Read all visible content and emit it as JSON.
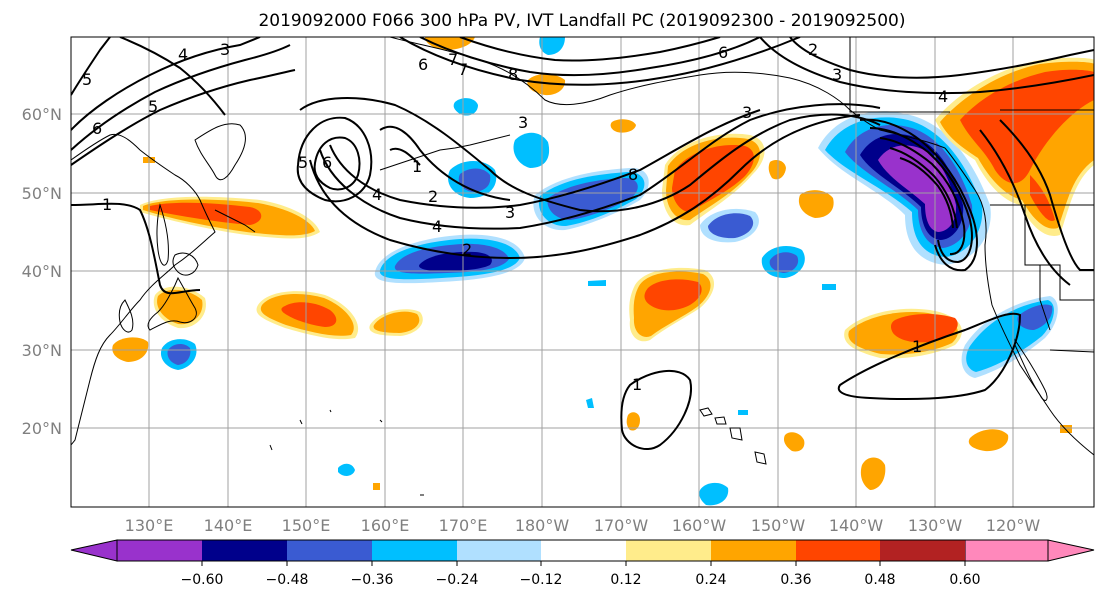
{
  "title": "2019092000 F066 300 hPa PV, IVT Landfall PC (2019092300 - 2019092500)",
  "map": {
    "lat_labels": [
      "60°N",
      "50°N",
      "40°N",
      "30°N",
      "20°N"
    ],
    "lon_labels": [
      "130°E",
      "140°E",
      "150°E",
      "160°E",
      "170°E",
      "180°W",
      "170°W",
      "160°W",
      "150°W",
      "140°W",
      "130°W",
      "120°W"
    ],
    "land_color": "#ffffff",
    "grid_color": "#a0a0a0",
    "contour_color": "#000000"
  },
  "contours": {
    "labels": [
      {
        "text": "4"
      },
      {
        "text": "3"
      },
      {
        "text": "5"
      },
      {
        "text": "6"
      },
      {
        "text": "5"
      },
      {
        "text": "6"
      },
      {
        "text": "7"
      },
      {
        "text": "8"
      },
      {
        "text": "7"
      },
      {
        "text": "2"
      },
      {
        "text": "3"
      },
      {
        "text": "6"
      },
      {
        "text": "4"
      },
      {
        "text": "5"
      },
      {
        "text": "6"
      },
      {
        "text": "1"
      },
      {
        "text": "2"
      },
      {
        "text": "3"
      },
      {
        "text": "4"
      },
      {
        "text": "3"
      },
      {
        "text": "8"
      },
      {
        "text": "3"
      },
      {
        "text": "1"
      },
      {
        "text": "2"
      },
      {
        "text": "1"
      },
      {
        "text": "4"
      },
      {
        "text": "1"
      }
    ]
  },
  "colorbar": {
    "colors": [
      "#9932cc",
      "#00008b",
      "#3a5bd2",
      "#00bfff",
      "#b0e0ff",
      "#ffffff",
      "#ffec8b",
      "#ffa500",
      "#ff4500",
      "#b22222",
      "#ff88bb"
    ],
    "tick_labels": [
      "−0.60",
      "−0.48",
      "−0.36",
      "−0.24",
      "−0.12",
      "0.12",
      "0.24",
      "0.36",
      "0.48",
      "0.60"
    ]
  }
}
